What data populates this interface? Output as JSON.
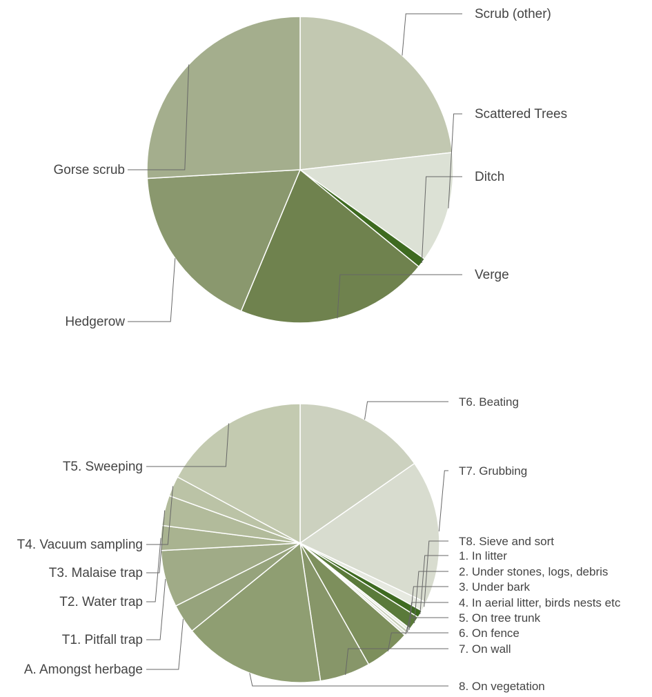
{
  "chart_data": [
    {
      "type": "pie",
      "title": "",
      "slices": [
        {
          "label": "Scrub (other)",
          "value": 23.2,
          "color": "#c2c8b1"
        },
        {
          "label": "Scattered Trees",
          "value": 11.7,
          "color": "#dce1d5"
        },
        {
          "label": "Ditch",
          "value": 1.0,
          "color": "#3e6a20"
        },
        {
          "label": "Verge",
          "value": 20.4,
          "color": "#6f824e"
        },
        {
          "label": "Hedgerow",
          "value": 17.8,
          "color": "#8a986e"
        },
        {
          "label": "Gorse scrub",
          "value": 25.9,
          "color": "#a4ae8d"
        }
      ]
    },
    {
      "type": "pie",
      "title": "",
      "slices": [
        {
          "label": "T6. Beating",
          "value": 14.4,
          "color": "#ccd1bf"
        },
        {
          "label": "T7. Grubbing",
          "value": 15.7,
          "color": "#d8dccf"
        },
        {
          "label": "T8. Sieve and sort",
          "value": 1.0,
          "color": "#e6e9e0"
        },
        {
          "label": "1. In litter",
          "value": 0.8,
          "color": "#3e6a20"
        },
        {
          "label": "2. Under stones, logs, debris",
          "value": 1.5,
          "color": "#5a7a3a"
        },
        {
          "label": "3. Under bark",
          "value": 0.3,
          "color": "#e8ebe0"
        },
        {
          "label": "4. In aerial litter, birds nests etc",
          "value": 0.3,
          "color": "#c5cdb5"
        },
        {
          "label": "5. On tree trunk",
          "value": 0.3,
          "color": "#dfe3d6"
        },
        {
          "label": "6. On fence",
          "value": 5.0,
          "color": "#7d8f5c"
        },
        {
          "label": "7. On wall",
          "value": 5.5,
          "color": "#879669"
        },
        {
          "label": "8. On vegetation",
          "value": 15.5,
          "color": "#8f9e72"
        },
        {
          "label": "A. Amongst herbage",
          "value": 3.2,
          "color": "#96a37c"
        },
        {
          "label": "T1. Pitfall trap",
          "value": 6.2,
          "color": "#a0ab87"
        },
        {
          "label": "T2. Water trap",
          "value": 2.7,
          "color": "#a9b390"
        },
        {
          "label": "T3. Malaise trap",
          "value": 3.3,
          "color": "#b2bb9b"
        },
        {
          "label": "T4. Vacuum sampling",
          "value": 2.2,
          "color": "#bbc3a6"
        },
        {
          "label": "T5. Sweeping",
          "value": 16.1,
          "color": "#c3cab0"
        }
      ]
    }
  ]
}
